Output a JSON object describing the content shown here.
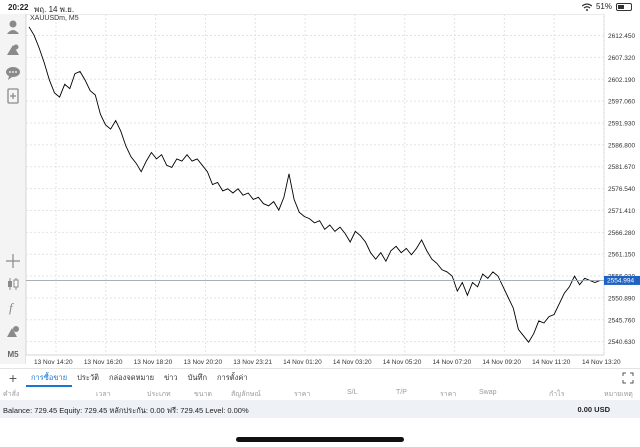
{
  "status_bar": {
    "time": "20:22",
    "date": "พฤ. 14 พ.ย.",
    "battery": "51%",
    "battery_level": 0.51
  },
  "chart": {
    "symbol_label": "XAUUSDm, M5",
    "current_price": "2554.994",
    "line_color": "#000000",
    "current_price_color": "#1e63c4"
  },
  "toolbar": {
    "timeframe_label": "M5",
    "icons": [
      "account-icon",
      "signal-icon",
      "chat-icon",
      "add-document-icon",
      "crosshair-icon",
      "candlestick-icon",
      "function-icon",
      "objects-icon"
    ]
  },
  "tabs": {
    "items": [
      "การซื้อขาย",
      "ประวัติ",
      "กล่องจดหมาย",
      "ข่าว",
      "บันทึก",
      "การตั้งค่า"
    ],
    "active_index": 0
  },
  "table_headers": [
    "คำสั่ง",
    "เวลา",
    "ประเภท",
    "ขนาด",
    "สัญลักษณ์",
    "ราคา",
    "S/L",
    "T/P",
    "ราคา",
    "Swap",
    "กำไร",
    "หมายเหตุ"
  ],
  "account": {
    "summary": "Balance: 729.45 Equity: 729.45 หลักประกัน: 0.00 ฟรี: 729.45 Level: 0.00%",
    "profit": "0.00  USD"
  },
  "chart_data": {
    "type": "line",
    "title": "XAUUSDm, M5",
    "y_ticks": [
      "2612.450",
      "2607.320",
      "2602.190",
      "2597.060",
      "2591.930",
      "2586.800",
      "2581.670",
      "2576.540",
      "2571.410",
      "2566.280",
      "2561.150",
      "2556.020",
      "2550.890",
      "2545.760",
      "2540.630"
    ],
    "x_ticks": [
      "13 Nov 14:20",
      "13 Nov 16:20",
      "13 Nov 18:20",
      "13 Nov 20:20",
      "13 Nov 23:21",
      "14 Nov 01:20",
      "14 Nov 03:20",
      "14 Nov 05:20",
      "14 Nov 07:20",
      "14 Nov 09:20",
      "14 Nov 11:20",
      "14 Nov 13:20"
    ],
    "ylim": [
      2537.5,
      2617.5
    ],
    "current_value": 2554.994,
    "grid": true,
    "values": [
      2614.5,
      2612.5,
      2609.5,
      2606.0,
      2602.0,
      2599.0,
      2598.0,
      2601.0,
      2600.0,
      2603.5,
      2604.0,
      2602.0,
      2599.5,
      2598.5,
      2594.0,
      2591.5,
      2590.5,
      2592.5,
      2590.0,
      2586.5,
      2584.0,
      2582.5,
      2580.5,
      2583.0,
      2585.0,
      2583.5,
      2584.5,
      2582.0,
      2581.5,
      2583.5,
      2583.0,
      2584.5,
      2583.0,
      2583.5,
      2582.0,
      2580.5,
      2577.5,
      2578.0,
      2576.0,
      2576.5,
      2575.5,
      2576.5,
      2575.0,
      2575.5,
      2574.0,
      2574.5,
      2573.0,
      2572.5,
      2573.5,
      2571.5,
      2574.5,
      2580.0,
      2574.0,
      2571.0,
      2570.0,
      2569.5,
      2568.5,
      2569.0,
      2567.0,
      2568.0,
      2566.5,
      2567.5,
      2566.0,
      2564.0,
      2566.5,
      2565.5,
      2564.0,
      2561.5,
      2560.0,
      2561.5,
      2559.5,
      2562.0,
      2563.0,
      2561.5,
      2562.5,
      2561.0,
      2562.5,
      2564.5,
      2562.0,
      2560.0,
      2559.0,
      2557.5,
      2557.0,
      2556.0,
      2552.5,
      2554.5,
      2551.5,
      2554.5,
      2553.5,
      2556.5,
      2555.5,
      2557.0,
      2556.0,
      2553.5,
      2551.0,
      2548.5,
      2543.5,
      2542.0,
      2540.5,
      2542.5,
      2545.5,
      2545.0,
      2546.5,
      2547.0,
      2549.5,
      2552.0,
      2553.5,
      2556.0,
      2554.0,
      2555.5,
      2555.0,
      2554.5,
      2555.0
    ]
  }
}
